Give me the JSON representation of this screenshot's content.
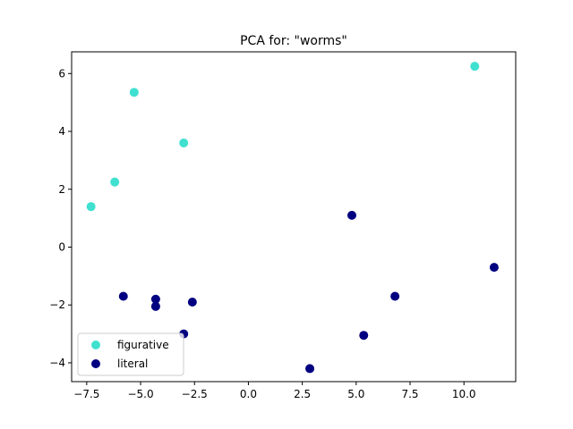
{
  "chart_data": {
    "type": "scatter",
    "title": "PCA for: \"worms\"",
    "xlabel": "",
    "ylabel": "",
    "xlim": [
      -8.2,
      12.4
    ],
    "ylim": [
      -4.65,
      6.75
    ],
    "xticks": [
      -7.5,
      -5.0,
      -2.5,
      0.0,
      2.5,
      5.0,
      7.5,
      10.0
    ],
    "xtick_labels": [
      "−7.5",
      "−5.0",
      "−2.5",
      "0.0",
      "2.5",
      "5.0",
      "7.5",
      "10.0"
    ],
    "yticks": [
      -4,
      -2,
      0,
      2,
      4,
      6
    ],
    "ytick_labels": [
      "−4",
      "−2",
      "0",
      "2",
      "4",
      "6"
    ],
    "grid": false,
    "legend_position": "lower-left",
    "series": [
      {
        "name": "figurative",
        "color": "#40e0d0",
        "points": [
          {
            "x": -7.3,
            "y": 1.4
          },
          {
            "x": -6.2,
            "y": 2.25
          },
          {
            "x": -5.3,
            "y": 5.35
          },
          {
            "x": -3.0,
            "y": 3.6
          },
          {
            "x": 10.5,
            "y": 6.25
          }
        ]
      },
      {
        "name": "literal",
        "color": "#000080",
        "points": [
          {
            "x": -5.8,
            "y": -1.7
          },
          {
            "x": -4.3,
            "y": -1.8
          },
          {
            "x": -4.3,
            "y": -2.05
          },
          {
            "x": -2.6,
            "y": -1.9
          },
          {
            "x": -3.0,
            "y": -3.0
          },
          {
            "x": 2.85,
            "y": -4.2
          },
          {
            "x": 4.8,
            "y": 1.1
          },
          {
            "x": 5.35,
            "y": -3.05
          },
          {
            "x": 6.8,
            "y": -1.7
          },
          {
            "x": 11.4,
            "y": -0.7
          }
        ]
      }
    ]
  }
}
